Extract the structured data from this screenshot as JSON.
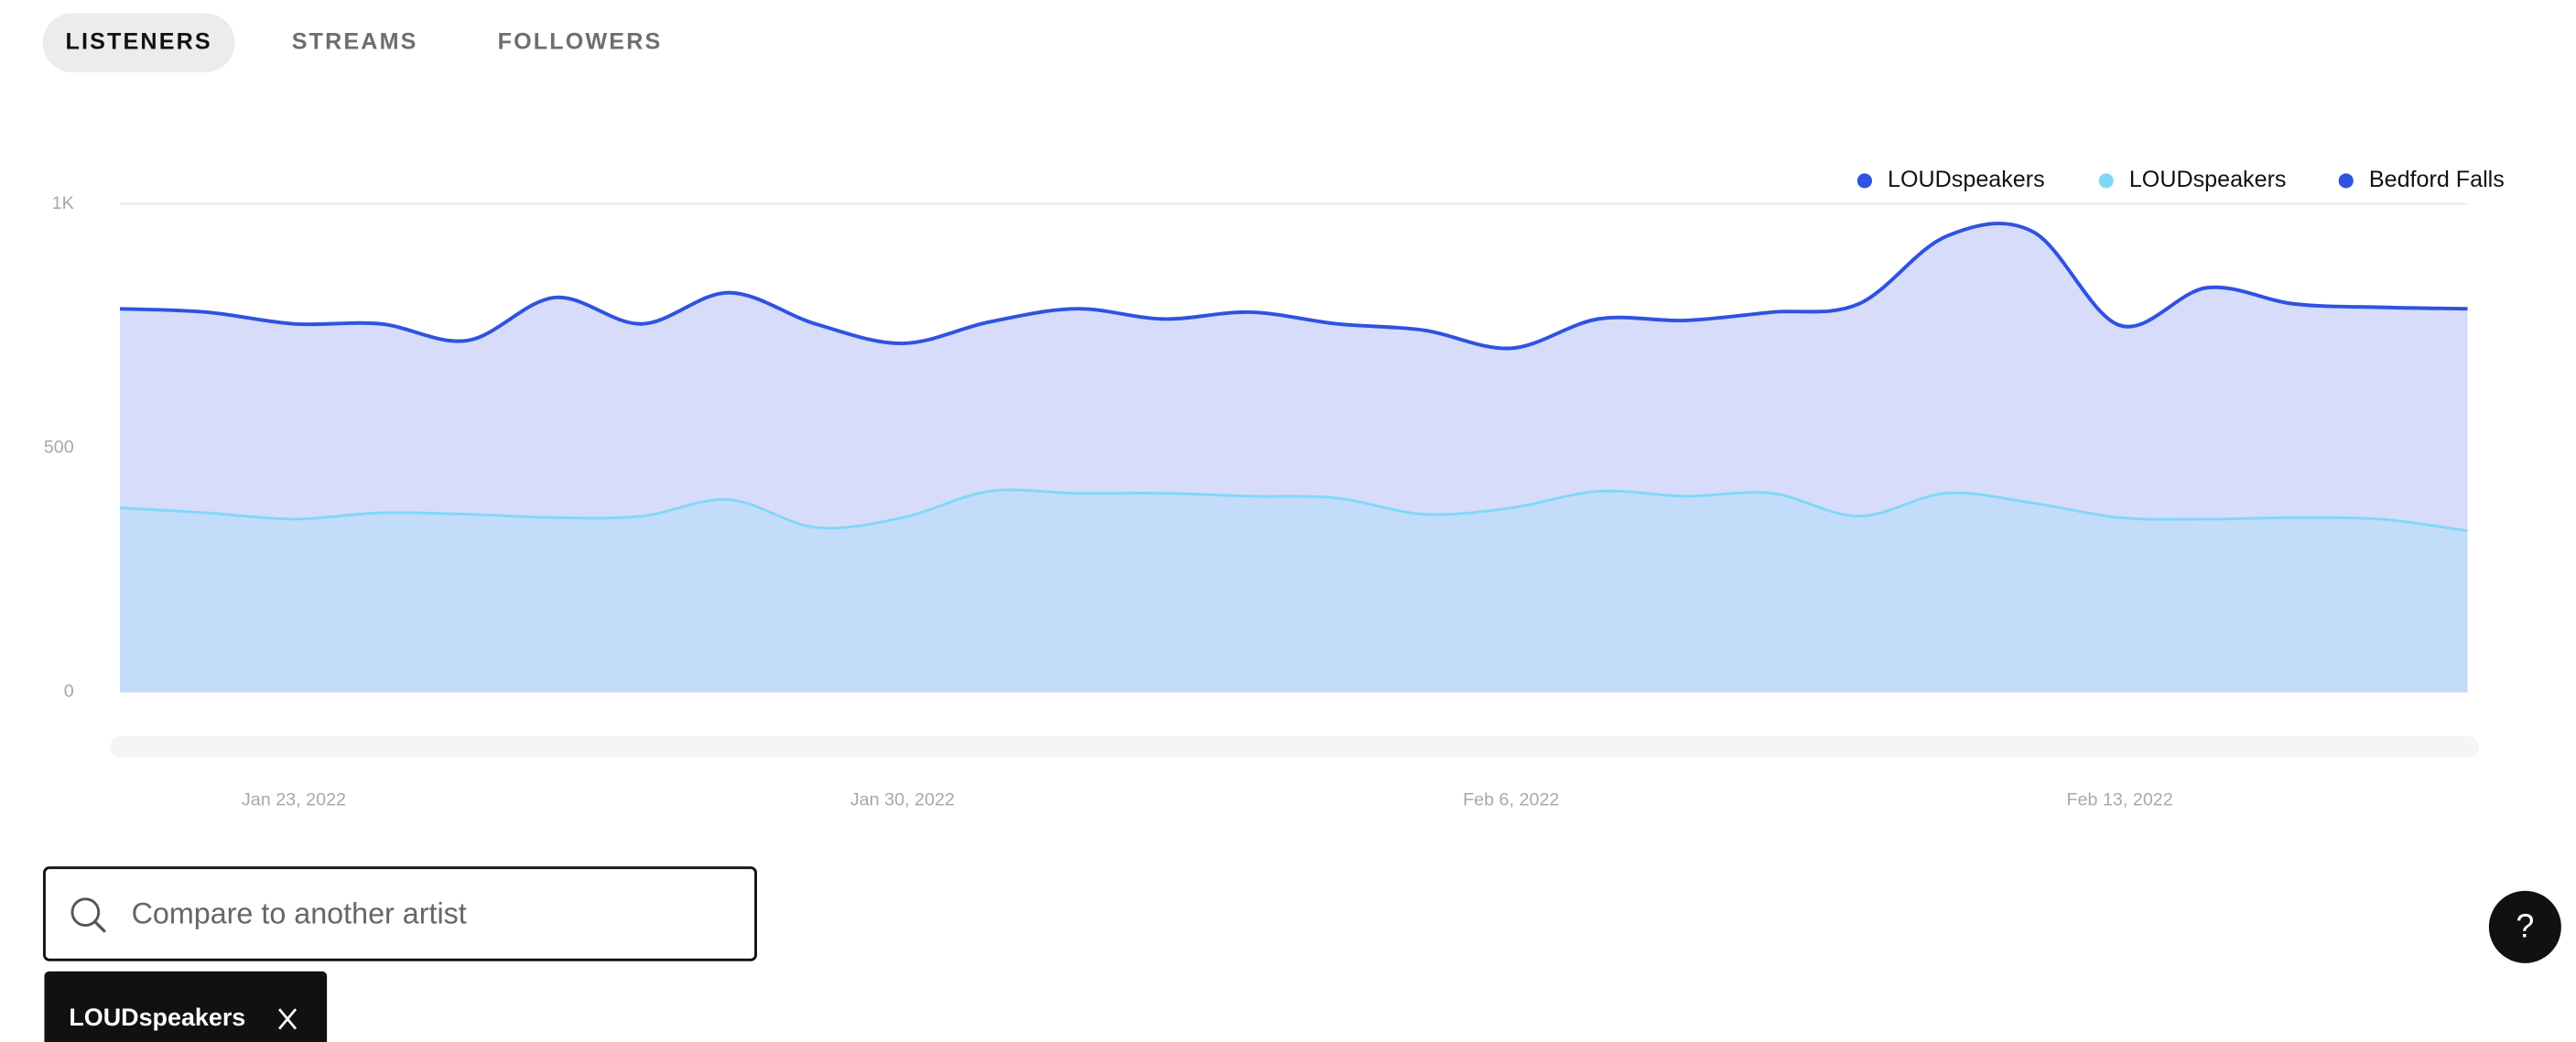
{
  "tabs": [
    "LISTENERS",
    "STREAMS",
    "FOLLOWERS"
  ],
  "chart_data": {
    "type": "area",
    "x": [
      "2022-01-21",
      "2022-01-22",
      "2022-01-23",
      "2022-01-24",
      "2022-01-25",
      "2022-01-26",
      "2022-01-27",
      "2022-01-28",
      "2022-01-29",
      "2022-01-30",
      "2022-01-31",
      "2022-02-01",
      "2022-02-02",
      "2022-02-03",
      "2022-02-04",
      "2022-02-05",
      "2022-02-06",
      "2022-02-07",
      "2022-02-08",
      "2022-02-09",
      "2022-02-10",
      "2022-02-11",
      "2022-02-12",
      "2022-02-13",
      "2022-02-14",
      "2022-02-15",
      "2022-02-16",
      "2022-02-17"
    ],
    "series": [
      {
        "name": "LOUDspeakers",
        "color": "#2f52e0",
        "fill": "#d6dcfa",
        "values": [
          785,
          778,
          754,
          754,
          720,
          808,
          754,
          818,
          754,
          714,
          758,
          785,
          764,
          778,
          754,
          741,
          704,
          764,
          761,
          778,
          795,
          933,
          943,
          751,
          828,
          795,
          788,
          785
        ]
      },
      {
        "name": "LOUDspeakers",
        "color": "#7fd8f7",
        "fill": "#c3dcfa",
        "values": [
          377,
          367,
          354,
          367,
          364,
          357,
          360,
          394,
          337,
          357,
          411,
          407,
          407,
          401,
          397,
          364,
          377,
          411,
          401,
          407,
          360,
          407,
          387,
          357,
          354,
          357,
          354,
          330
        ]
      },
      {
        "name": "Bedford Falls",
        "color": "#2f52e0",
        "fill": "#d6dcfa",
        "values": [
          null,
          null,
          null,
          null,
          null,
          null,
          null,
          null,
          null,
          null,
          null,
          null,
          null,
          null,
          null,
          null,
          null,
          null,
          null,
          null,
          null,
          null,
          null,
          null,
          null,
          null,
          null,
          null
        ]
      }
    ],
    "ylim": [
      0,
      1000
    ],
    "yticks": [
      0,
      500,
      {
        "value": 1000,
        "label": "1K"
      }
    ],
    "xticks": [
      {
        "value": "2022-01-23",
        "label": "Jan 23, 2022"
      },
      {
        "value": "2022-01-30",
        "label": "Jan 30, 2022"
      },
      {
        "value": "2022-02-06",
        "label": "Feb 6, 2022"
      },
      {
        "value": "2022-02-13",
        "label": "Feb 13, 2022"
      }
    ],
    "grid": true
  },
  "search": {
    "placeholder": "Compare to another artist"
  },
  "chips": [
    "LOUDspeakers"
  ],
  "help": "?"
}
